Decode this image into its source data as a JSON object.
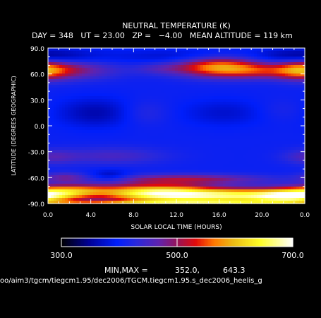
{
  "chart_data": {
    "type": "heatmap",
    "title": "NEUTRAL TEMPERATURE (K)",
    "subtitle": "DAY = 348   UT = 23.00   ZP =   −4.00   MEAN ALTITUDE = 119 km",
    "xlabel": "SOLAR LOCAL TIME (HOURS)",
    "ylabel": "LATITUDE (DEGREES GEOGRAPHIC)",
    "x_range": [
      0,
      24
    ],
    "y_range": [
      -90,
      90
    ],
    "x_ticks": [
      "0.0",
      "4.0",
      "8.0",
      "12.0",
      "16.0",
      "20.0",
      "0.0"
    ],
    "y_ticks": [
      "90.0",
      "60.0",
      "30.0",
      "0.0",
      "-30.0",
      "-60.0",
      "-90.0"
    ],
    "colorbar": {
      "min": 300,
      "max": 700,
      "ticks": [
        "300.0",
        "500.0",
        "700.0"
      ],
      "marker": 500
    },
    "minmax_label": "MIN,MAX =",
    "min_value": "352.0,",
    "max_value": "643.3",
    "file_path": "oo/aim3/tgcm/tiegcm1.95/dec2006/TGCM.tiegcm1.95.s_dec2006_heelis_g",
    "field_features": [
      {
        "lt": 0.5,
        "lat": 80,
        "value": 370,
        "sx": 4.5,
        "sy": 7
      },
      {
        "lt": 12.5,
        "lat": 80,
        "value": 370,
        "sx": 3.5,
        "sy": 6
      },
      {
        "lt": 23.5,
        "lat": 80,
        "value": 370,
        "sx": 2.5,
        "sy": 6
      },
      {
        "lt": 1.5,
        "lat": 65,
        "value": 500,
        "sx": 3.2,
        "sy": 8
      },
      {
        "lt": 23.6,
        "lat": 65,
        "value": 505,
        "sx": 1.5,
        "sy": 8
      },
      {
        "lt": 16,
        "lat": 68,
        "value": 580,
        "sx": 2.8,
        "sy": 8
      },
      {
        "lt": 20,
        "lat": 63,
        "value": 470,
        "sx": 2.5,
        "sy": 6
      },
      {
        "lt": 10.5,
        "lat": 66,
        "value": 440,
        "sx": 1.8,
        "sy": 5
      },
      {
        "lt": 4.5,
        "lat": 15,
        "value": 360,
        "sx": 2.6,
        "sy": 12
      },
      {
        "lt": 16.5,
        "lat": 15,
        "value": 375,
        "sx": 2.8,
        "sy": 11
      },
      {
        "lt": 9,
        "lat": 15,
        "value": 430,
        "sx": 1.6,
        "sy": 10
      },
      {
        "lt": 21.8,
        "lat": 18,
        "value": 420,
        "sx": 1.6,
        "sy": 9
      },
      {
        "lt": 6,
        "lat": -35,
        "value": 450,
        "sx": 3.5,
        "sy": 7
      },
      {
        "lt": 0.3,
        "lat": -36,
        "value": 450,
        "sx": 1.6,
        "sy": 6
      },
      {
        "lt": 5.8,
        "lat": -58,
        "value": 358,
        "sx": 1.3,
        "sy": 5
      },
      {
        "lt": 1.5,
        "lat": -60,
        "value": 470,
        "sx": 1.5,
        "sy": 4
      },
      {
        "lt": 13,
        "lat": -62,
        "value": 500,
        "sx": 5,
        "sy": 4
      },
      {
        "lt": 2,
        "lat": -75,
        "value": 560,
        "sx": 3,
        "sy": 5
      },
      {
        "lt": 10,
        "lat": -78,
        "value": 635,
        "sx": 3.5,
        "sy": 7
      },
      {
        "lt": 17,
        "lat": -81,
        "value": 630,
        "sx": 4.5,
        "sy": 6
      },
      {
        "lt": 23,
        "lat": -82,
        "value": 600,
        "sx": 2.5,
        "sy": 5
      },
      {
        "lt": 12,
        "lat": -89,
        "value": 545,
        "sx": 12,
        "sy": 2
      }
    ]
  }
}
